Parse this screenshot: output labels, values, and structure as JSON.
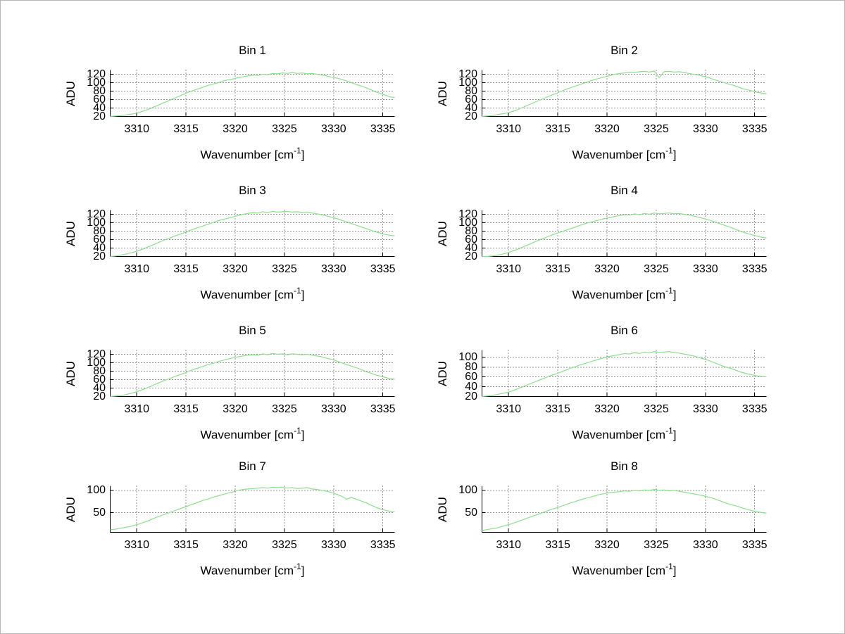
{
  "figure": {
    "background": "#ffffff",
    "curve_color": "#8ce08c",
    "grid_color": "#2a2a2a",
    "axis_color": "#000000",
    "text_color": "#000000"
  },
  "chart_data": {
    "type": "line",
    "grid": true,
    "legend": false,
    "ylabel": "ADU",
    "xlabel_base": "Wavenumber [cm",
    "xlabel_exp": "-1",
    "xlabel_suffix": "]",
    "xlim": [
      3307.3,
      3336.2
    ],
    "xticks": [
      3310,
      3315,
      3320,
      3325,
      3330,
      3335
    ],
    "x": [
      3307.3,
      3307.8,
      3308.3,
      3308.8,
      3309.3,
      3309.8,
      3310.3,
      3310.8,
      3311.3,
      3311.8,
      3312.3,
      3312.8,
      3313.3,
      3313.8,
      3314.3,
      3314.8,
      3315.3,
      3315.8,
      3316.3,
      3316.8,
      3317.3,
      3317.8,
      3318.3,
      3318.8,
      3319.3,
      3319.8,
      3320.3,
      3320.8,
      3321.3,
      3321.8,
      3322.3,
      3322.8,
      3323.3,
      3323.8,
      3324.3,
      3324.8,
      3325.3,
      3325.8,
      3326.3,
      3326.8,
      3327.3,
      3327.8,
      3328.3,
      3328.8,
      3329.3,
      3329.8,
      3330.3,
      3330.8,
      3331.3,
      3331.8,
      3332.3,
      3332.8,
      3333.3,
      3333.8,
      3334.3,
      3334.8,
      3335.3,
      3335.8,
      3336.2
    ],
    "series": [
      {
        "name": "Bin 1",
        "ylim": [
          20,
          130
        ],
        "yticks": [
          20,
          40,
          60,
          80,
          100,
          120
        ],
        "values": [
          20,
          21,
          22,
          23,
          25,
          27,
          30,
          34,
          38,
          43,
          48,
          53,
          58,
          63,
          68,
          73,
          78,
          82,
          86,
          90,
          94,
          97,
          100,
          104,
          107,
          109,
          112,
          114,
          116,
          118,
          117,
          120,
          119,
          122,
          121,
          123,
          122,
          124,
          122,
          123,
          121,
          122,
          120,
          118,
          116,
          113,
          111,
          108,
          104,
          100,
          96,
          92,
          88,
          83,
          78,
          74,
          70,
          66,
          65
        ]
      },
      {
        "name": "Bin 2",
        "ylim": [
          20,
          130
        ],
        "yticks": [
          20,
          40,
          60,
          80,
          100,
          120
        ],
        "values": [
          20,
          21,
          22,
          24,
          26,
          28,
          31,
          35,
          40,
          45,
          50,
          55,
          60,
          65,
          70,
          74,
          79,
          84,
          88,
          92,
          96,
          100,
          104,
          108,
          111,
          114,
          117,
          120,
          122,
          123,
          125,
          124,
          126,
          127,
          125,
          128,
          112,
          126,
          127,
          125,
          126,
          124,
          122,
          120,
          118,
          115,
          112,
          108,
          104,
          101,
          97,
          94,
          90,
          86,
          83,
          80,
          77,
          75,
          74
        ]
      },
      {
        "name": "Bin 3",
        "ylim": [
          20,
          130
        ],
        "yticks": [
          20,
          40,
          60,
          80,
          100,
          120
        ],
        "values": [
          20,
          21,
          23,
          25,
          28,
          31,
          35,
          39,
          44,
          49,
          54,
          59,
          63,
          68,
          72,
          76,
          81,
          85,
          89,
          93,
          97,
          101,
          105,
          108,
          111,
          114,
          117,
          120,
          122,
          124,
          123,
          126,
          124,
          127,
          125,
          126,
          127,
          125,
          126,
          124,
          125,
          123,
          121,
          119,
          116,
          113,
          110,
          106,
          102,
          98,
          94,
          90,
          86,
          82,
          78,
          75,
          72,
          70,
          69
        ]
      },
      {
        "name": "Bin 4",
        "ylim": [
          20,
          130
        ],
        "yticks": [
          20,
          40,
          60,
          80,
          100,
          120
        ],
        "values": [
          20,
          20,
          21,
          23,
          25,
          28,
          32,
          36,
          41,
          46,
          51,
          56,
          61,
          65,
          70,
          74,
          78,
          82,
          86,
          90,
          94,
          98,
          101,
          104,
          107,
          110,
          112,
          115,
          117,
          119,
          118,
          121,
          119,
          122,
          120,
          123,
          121,
          122,
          123,
          121,
          122,
          120,
          118,
          116,
          113,
          110,
          107,
          103,
          99,
          95,
          91,
          87,
          82,
          78,
          74,
          71,
          68,
          65,
          64
        ]
      },
      {
        "name": "Bin 5",
        "ylim": [
          20,
          130
        ],
        "yticks": [
          20,
          40,
          60,
          80,
          100,
          120
        ],
        "values": [
          20,
          21,
          22,
          24,
          27,
          30,
          34,
          38,
          43,
          48,
          53,
          58,
          62,
          67,
          71,
          75,
          80,
          84,
          88,
          92,
          96,
          99,
          103,
          106,
          109,
          112,
          114,
          116,
          118,
          119,
          118,
          121,
          119,
          122,
          120,
          121,
          119,
          121,
          120,
          119,
          120,
          118,
          116,
          114,
          111,
          108,
          104,
          100,
          96,
          92,
          88,
          84,
          79,
          75,
          71,
          68,
          65,
          62,
          61
        ]
      },
      {
        "name": "Bin 6",
        "ylim": [
          20,
          115
        ],
        "yticks": [
          20,
          40,
          60,
          80,
          100
        ],
        "values": [
          20,
          21,
          22,
          24,
          26,
          28,
          31,
          35,
          39,
          43,
          47,
          51,
          55,
          59,
          63,
          66,
          70,
          74,
          78,
          81,
          85,
          88,
          91,
          94,
          97,
          100,
          102,
          104,
          106,
          108,
          107,
          110,
          108,
          111,
          109,
          112,
          110,
          111,
          112,
          110,
          109,
          107,
          105,
          103,
          100,
          97,
          94,
          90,
          86,
          82,
          79,
          76,
          72,
          69,
          66,
          64,
          62,
          61,
          60
        ]
      },
      {
        "name": "Bin 7",
        "ylim": [
          6,
          110
        ],
        "yticks": [
          50,
          100
        ],
        "values": [
          12,
          13,
          15,
          17,
          19,
          22,
          25,
          29,
          33,
          38,
          42,
          46,
          50,
          54,
          58,
          62,
          66,
          70,
          74,
          78,
          81,
          85,
          88,
          91,
          94,
          97,
          100,
          102,
          103,
          104,
          105,
          106,
          105,
          107,
          106,
          107,
          105,
          106,
          104,
          105,
          106,
          103,
          102,
          100,
          98,
          95,
          91,
          87,
          80,
          84,
          80,
          76,
          72,
          67,
          62,
          58,
          55,
          53,
          52
        ]
      },
      {
        "name": "Bin 8",
        "ylim": [
          6,
          110
        ],
        "yticks": [
          50,
          100
        ],
        "values": [
          10,
          12,
          14,
          16,
          19,
          22,
          25,
          29,
          33,
          37,
          41,
          45,
          49,
          53,
          57,
          60,
          64,
          68,
          72,
          75,
          79,
          82,
          85,
          88,
          91,
          93,
          95,
          96,
          97,
          99,
          98,
          100,
          99,
          101,
          100,
          102,
          100,
          101,
          99,
          100,
          98,
          96,
          94,
          92,
          90,
          88,
          85,
          82,
          78,
          74,
          70,
          67,
          64,
          60,
          57,
          54,
          52,
          50,
          49
        ]
      }
    ]
  }
}
